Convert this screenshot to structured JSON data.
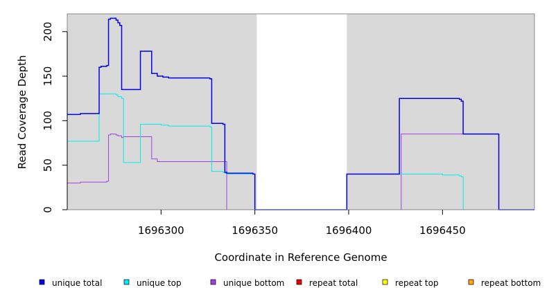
{
  "chart_data": {
    "type": "line",
    "xlabel": "Coordinate in Reference Genome",
    "ylabel": "Read Coverage Depth",
    "xlim": [
      1696250,
      1696499
    ],
    "ylim": [
      0,
      220
    ],
    "xticks": [
      1696300,
      1696350,
      1696400,
      1696450
    ],
    "yticks": [
      0,
      50,
      100,
      150,
      200
    ],
    "shaded_regions": [
      [
        1696250,
        1696351
      ],
      [
        1696399,
        1696499
      ]
    ],
    "colors": {
      "shade": "#d9d9d9",
      "unique_total": "#0000ee",
      "unique_top": "#00eeee",
      "unique_bottom": "#a040e0",
      "repeat_total": "#ee0000",
      "repeat_top": "#ffff00",
      "repeat_bottom": "#ffa500"
    },
    "series": [
      {
        "name": "unique total",
        "key": "unique_total",
        "x": [
          1696250,
          1696257,
          1696267,
          1696268,
          1696271,
          1696272,
          1696273,
          1696276,
          1696277,
          1696278,
          1696279,
          1696280,
          1696289,
          1696295,
          1696298,
          1696301,
          1696304,
          1696325,
          1696326,
          1696327,
          1696333,
          1696334,
          1696335,
          1696349,
          1696350,
          1696351,
          1696399,
          1696427,
          1696428,
          1696433,
          1696459,
          1696460,
          1696461,
          1696480,
          1696499
        ],
        "y": [
          107,
          108,
          160,
          161,
          162,
          214,
          215,
          213,
          210,
          207,
          135,
          135,
          178,
          153,
          150,
          149,
          148,
          148,
          147,
          97,
          96,
          42,
          41,
          40,
          0,
          0,
          40,
          125,
          125,
          125,
          124,
          122,
          85,
          0,
          0
        ]
      },
      {
        "name": "unique top",
        "key": "unique_top",
        "x": [
          1696250,
          1696267,
          1696276,
          1696277,
          1696279,
          1696280,
          1696289,
          1696300,
          1696304,
          1696325,
          1696326,
          1696327,
          1696333,
          1696334,
          1696335,
          1696350,
          1696351,
          1696399,
          1696427,
          1696428,
          1696450,
          1696459,
          1696460,
          1696461,
          1696499
        ],
        "y": [
          77,
          130,
          129,
          127,
          125,
          53,
          96,
          95,
          94,
          94,
          93,
          43,
          42,
          41,
          40,
          0,
          0,
          40,
          40,
          40,
          39,
          38,
          37,
          0,
          0
        ]
      },
      {
        "name": "unique bottom",
        "key": "unique_bottom",
        "x": [
          1696250,
          1696257,
          1696271,
          1696272,
          1696273,
          1696276,
          1696277,
          1696279,
          1696280,
          1696295,
          1696298,
          1696334,
          1696335,
          1696427,
          1696428,
          1696480,
          1696499
        ],
        "y": [
          30,
          31,
          32,
          84,
          85,
          84,
          83,
          81,
          82,
          57,
          54,
          54,
          0,
          0,
          85,
          0,
          0
        ]
      },
      {
        "name": "repeat total",
        "key": "repeat_total",
        "x": [
          1696250,
          1696499
        ],
        "y": [
          0,
          0
        ]
      },
      {
        "name": "repeat top",
        "key": "repeat_top",
        "x": [
          1696250,
          1696499
        ],
        "y": [
          0,
          0
        ]
      },
      {
        "name": "repeat bottom",
        "key": "repeat_bottom",
        "x": [
          1696250,
          1696499
        ],
        "y": [
          0,
          0
        ]
      }
    ],
    "legend": [
      {
        "label": "unique total",
        "key": "unique_total"
      },
      {
        "label": "unique top",
        "key": "unique_top"
      },
      {
        "label": "unique bottom",
        "key": "unique_bottom"
      },
      {
        "label": "repeat total",
        "key": "repeat_total"
      },
      {
        "label": "repeat top",
        "key": "repeat_top"
      },
      {
        "label": "repeat bottom",
        "key": "repeat_bottom"
      }
    ]
  }
}
